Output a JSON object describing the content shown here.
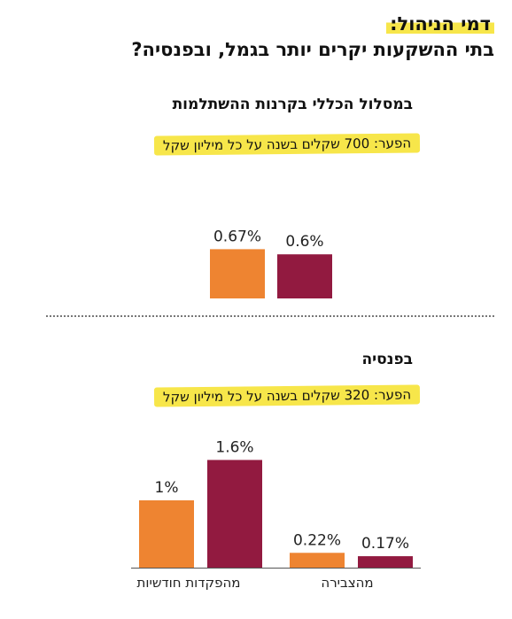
{
  "title": {
    "line1": "דמי הניהול:",
    "line2": "בתי ההשקעות יקרים יותר בגמל, ובפנסיה?"
  },
  "sections": [
    {
      "title": "במסלול הכללי בקרנות ההשתלמות",
      "gap_note": "הפער: 700 שקלים בשנה על כל מיליון שקל"
    },
    {
      "title": "בפנסיה",
      "gap_note": "הפער: 320 שקלים בשנה על כל מיליון שקל"
    }
  ],
  "colors": {
    "orange": "#ee8431",
    "maroon": "#921a40",
    "highlight": "#f7e64a"
  },
  "chart_data": [
    {
      "type": "bar",
      "title": "במסלול הכללי בקרנות ההשתלמות",
      "categories": [
        ""
      ],
      "series": [
        {
          "color": "#ee8431",
          "values": [
            0.67
          ],
          "labels": [
            "0.67%"
          ]
        },
        {
          "color": "#921a40",
          "values": [
            0.6
          ],
          "labels": [
            "0.6%"
          ]
        }
      ],
      "unit": "%"
    },
    {
      "type": "bar",
      "title": "בפנסיה",
      "categories": [
        "מהפקדות חודשיות",
        "מהצבירה"
      ],
      "series": [
        {
          "color": "#ee8431",
          "values": [
            1,
            0.22
          ],
          "labels": [
            "1%",
            "0.22%"
          ]
        },
        {
          "color": "#921a40",
          "values": [
            1.6,
            0.17
          ],
          "labels": [
            "1.6%",
            "0.17%"
          ]
        }
      ],
      "unit": "%"
    }
  ]
}
